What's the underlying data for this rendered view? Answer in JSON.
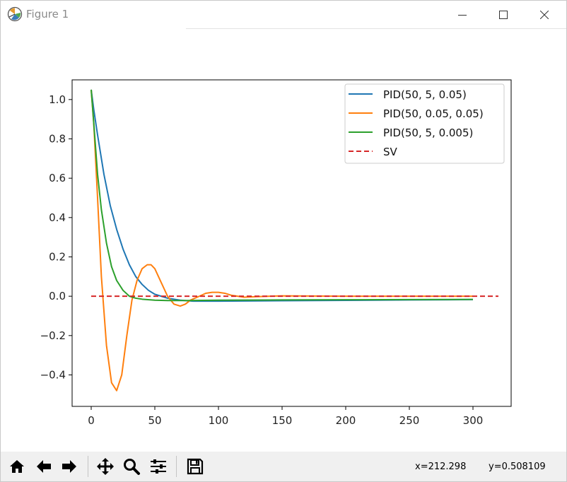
{
  "window": {
    "title": "Figure 1"
  },
  "titlebar_icons": {
    "app": "matplotlib-figure-icon",
    "minimize": "minimize-icon",
    "maximize": "maximize-icon",
    "close": "close-icon"
  },
  "toolbar": {
    "buttons": [
      {
        "name": "home-icon"
      },
      {
        "name": "back-arrow-icon"
      },
      {
        "name": "forward-arrow-icon"
      },
      {
        "name": "pan-move-icon"
      },
      {
        "name": "zoom-magnifier-icon"
      },
      {
        "name": "configure-subplots-icon"
      },
      {
        "name": "save-icon"
      }
    ],
    "coords_x": "x=212.298",
    "coords_y": "y=0.508109"
  },
  "chart_data": {
    "type": "line",
    "xlim": [
      -15,
      330
    ],
    "ylim": [
      -0.56,
      1.1
    ],
    "xticks": [
      0,
      50,
      100,
      150,
      200,
      250,
      300
    ],
    "xtick_labels": [
      "0",
      "50",
      "100",
      "150",
      "200",
      "250",
      "300"
    ],
    "yticks": [
      1.0,
      0.8,
      0.6,
      0.4,
      0.2,
      0.0,
      -0.2,
      -0.4
    ],
    "ytick_labels": [
      "1.0",
      "0.8",
      "0.6",
      "0.4",
      "0.2",
      "0.0",
      "−0.2",
      "−0.4"
    ],
    "grid": false,
    "legend_position": "top-right",
    "series": [
      {
        "name": "PID(50, 5, 0.05)",
        "color": "#1f77b4",
        "style": "solid",
        "x": [
          0,
          2,
          5,
          10,
          15,
          20,
          25,
          30,
          35,
          40,
          45,
          50,
          60,
          70,
          80,
          100,
          150,
          200,
          250,
          300
        ],
        "y": [
          1.05,
          0.95,
          0.82,
          0.62,
          0.46,
          0.34,
          0.24,
          0.16,
          0.1,
          0.06,
          0.03,
          0.01,
          -0.01,
          -0.02,
          -0.025,
          -0.025,
          -0.023,
          -0.021,
          -0.019,
          -0.017
        ]
      },
      {
        "name": "PID(50, 0.05, 0.05)",
        "color": "#ff7f0e",
        "style": "solid",
        "x": [
          0,
          2,
          5,
          8,
          12,
          16,
          20,
          24,
          28,
          32,
          36,
          40,
          44,
          47,
          50,
          55,
          60,
          65,
          70,
          74,
          78,
          85,
          90,
          95,
          100,
          105,
          110,
          120,
          130,
          150,
          200,
          250,
          300
        ],
        "y": [
          1.05,
          0.88,
          0.5,
          0.1,
          -0.25,
          -0.44,
          -0.48,
          -0.4,
          -0.2,
          -0.02,
          0.08,
          0.14,
          0.16,
          0.16,
          0.14,
          0.07,
          0.0,
          -0.04,
          -0.05,
          -0.04,
          -0.02,
          0.0,
          0.015,
          0.02,
          0.02,
          0.015,
          0.005,
          -0.005,
          -0.002,
          0.002,
          0.0,
          0.0,
          0.0
        ]
      },
      {
        "name": "PID(50, 5, 0.005)",
        "color": "#2ca02c",
        "style": "solid",
        "x": [
          0,
          2,
          5,
          8,
          12,
          16,
          20,
          25,
          30,
          35,
          40,
          50,
          60,
          75,
          100,
          150,
          200,
          250,
          300
        ],
        "y": [
          1.05,
          0.88,
          0.62,
          0.44,
          0.27,
          0.15,
          0.08,
          0.03,
          0.0,
          -0.01,
          -0.015,
          -0.02,
          -0.022,
          -0.022,
          -0.02,
          -0.019,
          -0.018,
          -0.017,
          -0.016
        ]
      },
      {
        "name": "SV",
        "color": "#d62728",
        "style": "dashed",
        "x": [
          0,
          320
        ],
        "y": [
          0.0,
          0.0
        ]
      }
    ]
  }
}
